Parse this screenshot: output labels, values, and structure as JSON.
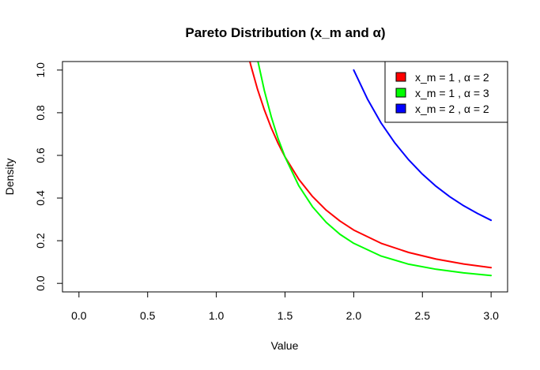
{
  "chart_data": {
    "type": "line",
    "title": "Pareto Distribution (x_m and α)",
    "xlabel": "Value",
    "ylabel": "Density",
    "xlim": [
      -0.12,
      3.12
    ],
    "ylim": [
      -0.04,
      1.04
    ],
    "x_ticks": [
      0.0,
      0.5,
      1.0,
      1.5,
      2.0,
      2.5,
      3.0
    ],
    "x_tick_labels": [
      "0.0",
      "0.5",
      "1.0",
      "1.5",
      "2.0",
      "2.5",
      "3.0"
    ],
    "y_ticks": [
      0.0,
      0.2,
      0.4,
      0.6,
      0.8,
      1.0
    ],
    "y_tick_labels": [
      "0.0",
      "0.2",
      "0.4",
      "0.6",
      "0.8",
      "1.0"
    ],
    "grid": false,
    "legend_position": "top-right",
    "series": [
      {
        "name": "x_m = 1 , α = 2",
        "color": "#ff0000",
        "x": [
          1.2,
          1.25,
          1.3,
          1.35,
          1.4,
          1.45,
          1.5,
          1.6,
          1.7,
          1.8,
          1.9,
          2.0,
          2.2,
          2.4,
          2.6,
          2.8,
          3.0
        ],
        "y": [
          1.157,
          1.024,
          0.91,
          0.813,
          0.729,
          0.656,
          0.593,
          0.488,
          0.407,
          0.343,
          0.292,
          0.25,
          0.188,
          0.145,
          0.114,
          0.091,
          0.074
        ]
      },
      {
        "name": "x_m = 1 , α = 3",
        "color": "#00ff00",
        "x": [
          1.25,
          1.3,
          1.35,
          1.4,
          1.45,
          1.5,
          1.6,
          1.7,
          1.8,
          1.9,
          2.0,
          2.2,
          2.4,
          2.6,
          2.8,
          3.0
        ],
        "y": [
          1.229,
          1.05,
          0.903,
          0.781,
          0.678,
          0.593,
          0.458,
          0.359,
          0.286,
          0.23,
          0.188,
          0.128,
          0.09,
          0.066,
          0.049,
          0.037
        ]
      },
      {
        "name": "x_m = 2 , α = 2",
        "color": "#0000ff",
        "x": [
          2.0,
          2.1,
          2.2,
          2.3,
          2.4,
          2.5,
          2.6,
          2.7,
          2.8,
          2.9,
          3.0
        ],
        "y": [
          1.0,
          0.864,
          0.751,
          0.658,
          0.579,
          0.512,
          0.455,
          0.406,
          0.364,
          0.328,
          0.296
        ]
      }
    ]
  }
}
